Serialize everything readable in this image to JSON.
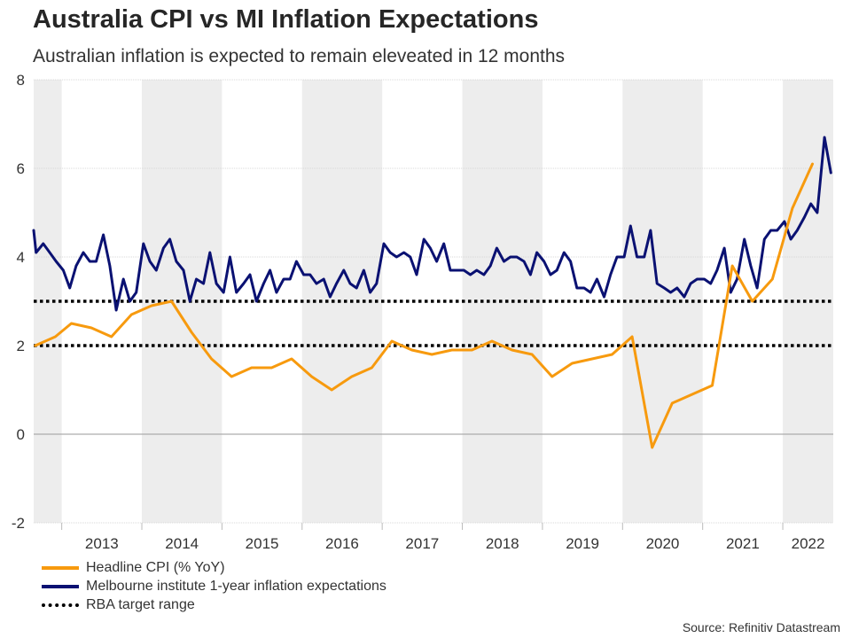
{
  "chart_data": {
    "type": "line",
    "title": "Australia CPI vs MI Inflation Expectations",
    "subtitle": "Australian inflation is expected to remain eleveated in 12 months",
    "xlabel": "",
    "ylabel": "",
    "ylim": [
      -2,
      8
    ],
    "xlim": [
      2012.65,
      2022.63
    ],
    "y_ticks": [
      "8",
      "6",
      "4",
      "2",
      "0",
      "-2"
    ],
    "x_tick_labels": [
      "2013",
      "2014",
      "2015",
      "2016",
      "2017",
      "2018",
      "2019",
      "2020",
      "2021",
      "2022"
    ],
    "shaded_years": [
      2012,
      2014,
      2016,
      2018,
      2020,
      2022
    ],
    "series": [
      {
        "name": "Headline CPI (% YoY)",
        "color": "#f79a0e",
        "x": [
          2012.67,
          2012.92,
          2013.12,
          2013.37,
          2013.62,
          2013.87,
          2014.12,
          2014.37,
          2014.62,
          2014.87,
          2015.12,
          2015.37,
          2015.62,
          2015.87,
          2016.12,
          2016.37,
          2016.62,
          2016.87,
          2017.12,
          2017.37,
          2017.62,
          2017.87,
          2018.12,
          2018.37,
          2018.62,
          2018.87,
          2019.12,
          2019.37,
          2019.62,
          2019.87,
          2020.12,
          2020.37,
          2020.62,
          2020.87,
          2021.12,
          2021.37,
          2021.62,
          2021.87,
          2022.12,
          2022.37
        ],
        "values": [
          2.0,
          2.2,
          2.5,
          2.4,
          2.2,
          2.7,
          2.9,
          3.0,
          2.3,
          1.7,
          1.3,
          1.5,
          1.5,
          1.7,
          1.3,
          1.0,
          1.3,
          1.5,
          2.1,
          1.9,
          1.8,
          1.9,
          1.9,
          2.1,
          1.9,
          1.8,
          1.3,
          1.6,
          1.7,
          1.8,
          2.2,
          -0.3,
          0.7,
          0.9,
          1.1,
          3.8,
          3.0,
          3.5,
          5.1,
          6.1
        ]
      },
      {
        "name": "Melbourne institute 1-year inflation expectations",
        "color": "#0a1172",
        "x": [
          2012.65,
          2012.68,
          2012.77,
          2012.85,
          2012.93,
          2013.02,
          2013.1,
          2013.18,
          2013.27,
          2013.35,
          2013.43,
          2013.52,
          2013.6,
          2013.68,
          2013.77,
          2013.85,
          2013.93,
          2014.02,
          2014.1,
          2014.18,
          2014.27,
          2014.35,
          2014.43,
          2014.52,
          2014.6,
          2014.68,
          2014.77,
          2014.85,
          2014.93,
          2015.02,
          2015.1,
          2015.18,
          2015.27,
          2015.35,
          2015.43,
          2015.52,
          2015.6,
          2015.68,
          2015.77,
          2015.85,
          2015.93,
          2016.02,
          2016.1,
          2016.18,
          2016.27,
          2016.35,
          2016.43,
          2016.52,
          2016.6,
          2016.68,
          2016.77,
          2016.85,
          2016.93,
          2017.02,
          2017.1,
          2017.18,
          2017.27,
          2017.35,
          2017.43,
          2017.52,
          2017.6,
          2017.68,
          2017.77,
          2017.85,
          2017.93,
          2018.02,
          2018.1,
          2018.18,
          2018.27,
          2018.35,
          2018.43,
          2018.52,
          2018.6,
          2018.68,
          2018.77,
          2018.85,
          2018.93,
          2019.02,
          2019.1,
          2019.18,
          2019.27,
          2019.35,
          2019.43,
          2019.52,
          2019.6,
          2019.68,
          2019.77,
          2019.85,
          2019.93,
          2020.02,
          2020.1,
          2020.18,
          2020.27,
          2020.35,
          2020.43,
          2020.52,
          2020.6,
          2020.68,
          2020.77,
          2020.85,
          2020.93,
          2021.02,
          2021.1,
          2021.18,
          2021.27,
          2021.35,
          2021.43,
          2021.52,
          2021.6,
          2021.68,
          2021.77,
          2021.85,
          2021.93,
          2022.02,
          2022.1,
          2022.18,
          2022.27,
          2022.35,
          2022.43,
          2022.52,
          2022.6
        ],
        "values": [
          4.6,
          4.1,
          4.3,
          4.1,
          3.9,
          3.7,
          3.3,
          3.8,
          4.1,
          3.9,
          3.9,
          4.5,
          3.8,
          2.8,
          3.5,
          3.0,
          3.2,
          4.3,
          3.9,
          3.7,
          4.2,
          4.4,
          3.9,
          3.7,
          3.0,
          3.5,
          3.4,
          4.1,
          3.4,
          3.2,
          4.0,
          3.2,
          3.4,
          3.6,
          3.0,
          3.4,
          3.7,
          3.2,
          3.5,
          3.5,
          3.9,
          3.6,
          3.6,
          3.4,
          3.5,
          3.1,
          3.4,
          3.7,
          3.4,
          3.3,
          3.7,
          3.2,
          3.4,
          4.3,
          4.1,
          4.0,
          4.1,
          4.0,
          3.6,
          4.4,
          4.2,
          3.9,
          4.3,
          3.7,
          3.7,
          3.7,
          3.6,
          3.7,
          3.6,
          3.8,
          4.2,
          3.9,
          4.0,
          4.0,
          3.9,
          3.6,
          4.1,
          3.9,
          3.6,
          3.7,
          4.1,
          3.9,
          3.3,
          3.3,
          3.2,
          3.5,
          3.1,
          3.6,
          4.0,
          4.0,
          4.7,
          4.0,
          4.0,
          4.6,
          3.4,
          3.3,
          3.2,
          3.3,
          3.1,
          3.4,
          3.5,
          3.5,
          3.4,
          3.7,
          4.2,
          3.2,
          3.5,
          4.4,
          3.8,
          3.3,
          4.4,
          4.6,
          4.6,
          4.8,
          4.4,
          4.6,
          4.9,
          5.2,
          5.0,
          6.7,
          5.9
        ]
      },
      {
        "name": "RBA target range",
        "color": "#000000",
        "style": "dotted",
        "values": [
          2,
          3
        ]
      }
    ],
    "legend_position": "bottom-left",
    "grid": "horizontal"
  },
  "source": "Source: Refinitiv Datastream"
}
